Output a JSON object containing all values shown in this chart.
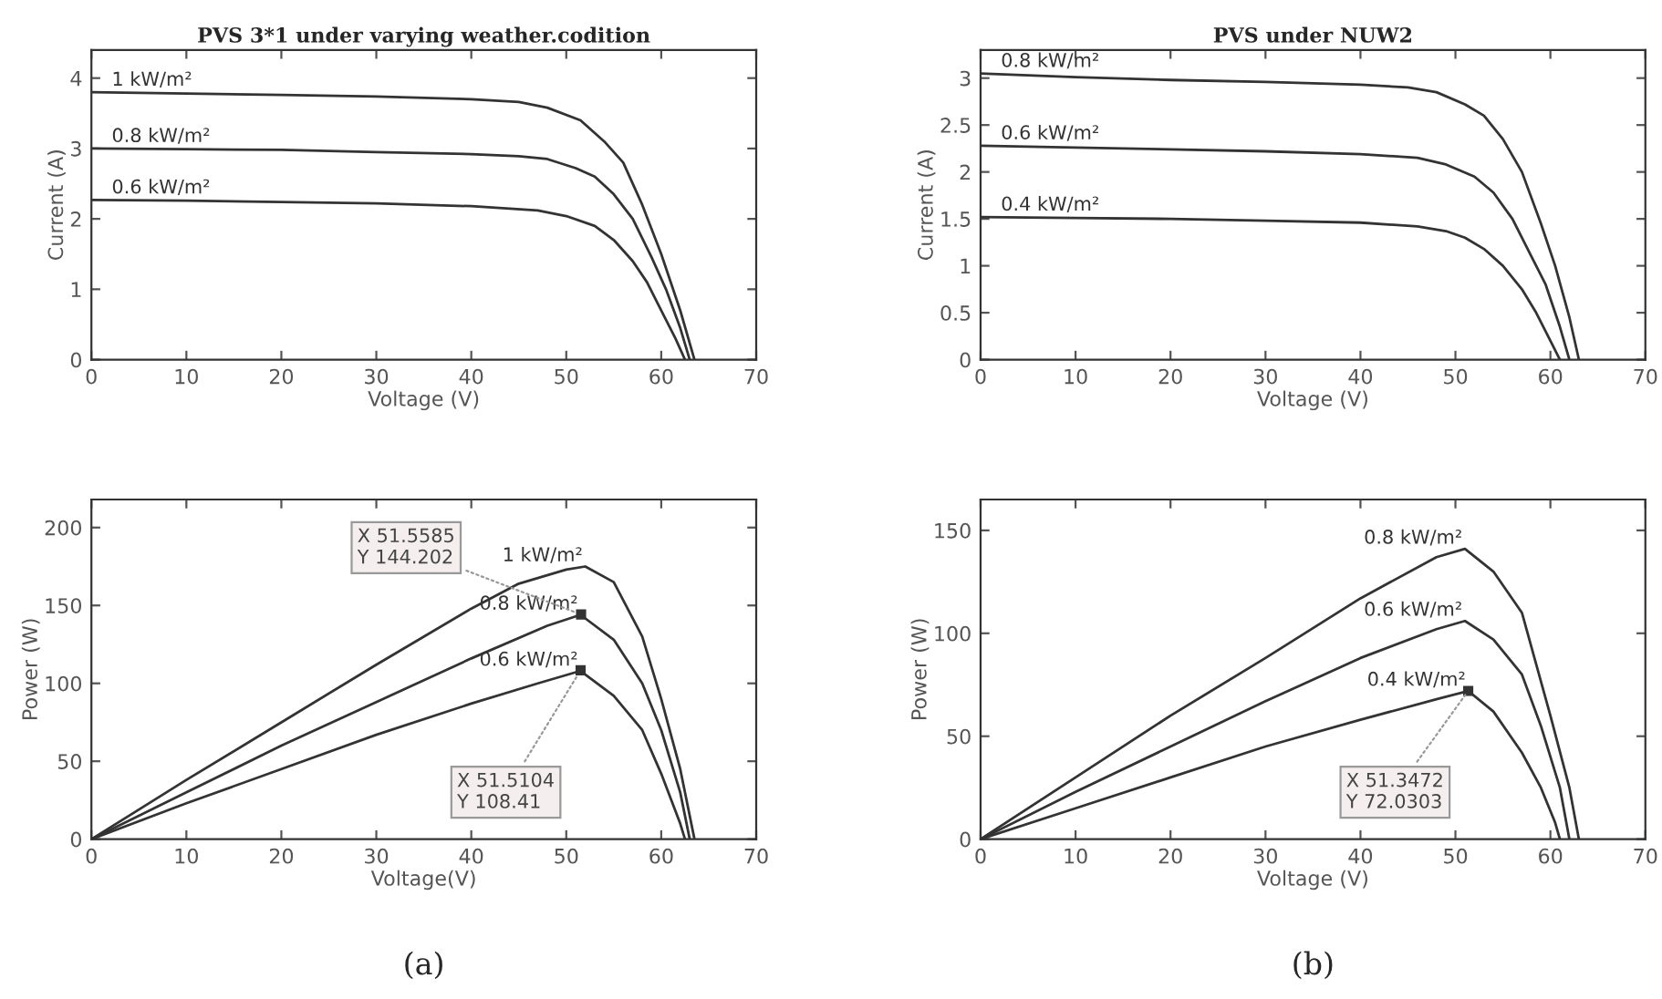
{
  "chart_data": [
    {
      "type": "line",
      "title": "PVS 3*1 under varying weather.codition",
      "xlabel": "Voltage (V)",
      "ylabel": "Current (A)",
      "xlim": [
        0,
        70
      ],
      "ylim": [
        0,
        4.4
      ],
      "xticks": [
        0,
        10,
        20,
        30,
        40,
        50,
        60,
        70
      ],
      "yticks": [
        0,
        1,
        2,
        3,
        4
      ],
      "grid": false,
      "legend": false,
      "marker": "none",
      "line_style": "solid",
      "series": [
        {
          "name": "1 kW/m²",
          "color": "#333333",
          "x": [
            0,
            10,
            20,
            30,
            40,
            45,
            48,
            51.5,
            54,
            56,
            58,
            60,
            62,
            63.5
          ],
          "values": [
            3.8,
            3.78,
            3.76,
            3.74,
            3.7,
            3.66,
            3.58,
            3.4,
            3.1,
            2.8,
            2.2,
            1.5,
            0.7,
            0
          ]
        },
        {
          "name": "0.8 kW/m²",
          "color": "#333333",
          "x": [
            0,
            10,
            20,
            30,
            40,
            45,
            48,
            51,
            53,
            55,
            57,
            59,
            60.5,
            62,
            63
          ],
          "values": [
            3.0,
            2.99,
            2.98,
            2.95,
            2.92,
            2.89,
            2.85,
            2.72,
            2.6,
            2.35,
            2.0,
            1.45,
            1.0,
            0.45,
            0
          ]
        },
        {
          "name": "0.6 kW/m²",
          "color": "#333333",
          "x": [
            0,
            10,
            20,
            30,
            40,
            47,
            50,
            53,
            55,
            57,
            58.5,
            60,
            61.5,
            62.5
          ],
          "values": [
            2.27,
            2.26,
            2.24,
            2.22,
            2.18,
            2.12,
            2.04,
            1.9,
            1.7,
            1.4,
            1.1,
            0.7,
            0.3,
            0
          ]
        }
      ]
    },
    {
      "type": "line",
      "title": "PVS under NUW2",
      "xlabel": "Voltage (V)",
      "ylabel": "Current (A)",
      "xlim": [
        0,
        70
      ],
      "ylim": [
        0,
        3.3
      ],
      "xticks": [
        0,
        10,
        20,
        30,
        40,
        50,
        60,
        70
      ],
      "yticks": [
        0,
        0.5,
        1,
        1.5,
        2,
        2.5,
        3
      ],
      "grid": false,
      "legend": false,
      "marker": "none",
      "line_style": "solid",
      "series": [
        {
          "name": "0.8 kW/m²",
          "color": "#333333",
          "x": [
            0,
            10,
            20,
            30,
            40,
            45,
            48,
            51,
            53,
            55,
            57,
            59,
            60.5,
            62,
            63
          ],
          "values": [
            3.05,
            3.01,
            2.98,
            2.96,
            2.93,
            2.9,
            2.85,
            2.72,
            2.6,
            2.35,
            2.0,
            1.45,
            1.0,
            0.45,
            0
          ]
        },
        {
          "name": "0.6 kW/m²",
          "color": "#333333",
          "x": [
            0,
            10,
            20,
            30,
            40,
            46,
            49,
            52,
            54,
            56,
            58,
            59.5,
            61,
            62
          ],
          "values": [
            2.28,
            2.26,
            2.24,
            2.22,
            2.19,
            2.15,
            2.08,
            1.95,
            1.78,
            1.5,
            1.1,
            0.8,
            0.35,
            0
          ]
        },
        {
          "name": "0.4 kW/m²",
          "color": "#333333",
          "x": [
            0,
            10,
            20,
            30,
            40,
            46,
            49,
            51,
            53,
            55,
            57,
            58.5,
            60,
            61
          ],
          "values": [
            1.52,
            1.51,
            1.5,
            1.48,
            1.46,
            1.42,
            1.37,
            1.3,
            1.18,
            1.0,
            0.75,
            0.5,
            0.2,
            0
          ]
        }
      ]
    },
    {
      "type": "line",
      "xlabel": "Voltage(V)",
      "ylabel": "Power (W)",
      "xlim": [
        0,
        70
      ],
      "ylim": [
        0,
        218
      ],
      "xticks": [
        0,
        10,
        20,
        30,
        40,
        50,
        60,
        70
      ],
      "yticks": [
        0,
        50,
        100,
        150,
        200
      ],
      "grid": false,
      "legend": false,
      "marker": "none",
      "line_style": "solid",
      "annotations": [
        {
          "text": "X 51.5585\nY 144.202",
          "x": 51.5585,
          "y": 144.202
        },
        {
          "text": "X 51.5104\nY 108.41",
          "x": 51.5104,
          "y": 108.41
        },
        "(a)"
      ],
      "series": [
        {
          "name": "1 kW/m²",
          "color": "#333333",
          "x": [
            0,
            10,
            20,
            30,
            40,
            45,
            50,
            52,
            55,
            58,
            60,
            62,
            63.5
          ],
          "values": [
            0,
            38,
            75,
            112,
            148,
            164,
            173,
            175,
            165,
            130,
            90,
            45,
            0
          ]
        },
        {
          "name": "0.8 kW/m²",
          "color": "#333333",
          "x": [
            0,
            10,
            20,
            30,
            40,
            48,
            51.5,
            55,
            58,
            60,
            62,
            63
          ],
          "values": [
            0,
            30,
            60,
            88,
            116,
            137,
            144,
            128,
            100,
            70,
            30,
            0
          ]
        },
        {
          "name": "0.6 kW/m²",
          "color": "#333333",
          "x": [
            0,
            10,
            20,
            30,
            40,
            47,
            51.5,
            55,
            58,
            60,
            62,
            62.5
          ],
          "values": [
            0,
            23,
            45,
            67,
            87,
            100,
            108,
            92,
            70,
            42,
            10,
            0
          ]
        }
      ]
    },
    {
      "type": "line",
      "xlabel": "Voltage (V)",
      "ylabel": "Power (W)",
      "xlim": [
        0,
        70
      ],
      "ylim": [
        0,
        165
      ],
      "xticks": [
        0,
        10,
        20,
        30,
        40,
        50,
        60,
        70
      ],
      "yticks": [
        0,
        50,
        100,
        150
      ],
      "grid": false,
      "legend": false,
      "marker": "none",
      "line_style": "solid",
      "annotations": [
        {
          "text": "X 51.3472\nY 72.0303",
          "x": 51.3472,
          "y": 72.0303
        },
        "(b)"
      ],
      "series": [
        {
          "name": "0.8 kW/m²",
          "color": "#333333",
          "x": [
            0,
            10,
            20,
            30,
            40,
            48,
            51,
            54,
            57,
            60,
            62,
            63
          ],
          "values": [
            0,
            30,
            60,
            88,
            117,
            137,
            141,
            130,
            110,
            60,
            25,
            0
          ]
        },
        {
          "name": "0.6 kW/m²",
          "color": "#333333",
          "x": [
            0,
            10,
            20,
            30,
            40,
            48,
            51,
            54,
            57,
            59,
            61,
            62
          ],
          "values": [
            0,
            23,
            45,
            67,
            88,
            102,
            106,
            97,
            80,
            55,
            25,
            0
          ]
        },
        {
          "name": "0.4 kW/m²",
          "color": "#333333",
          "x": [
            0,
            10,
            20,
            30,
            40,
            48,
            51.3472,
            54,
            57,
            59,
            60.5,
            61
          ],
          "values": [
            0,
            15,
            30,
            45,
            58,
            68,
            72,
            62,
            42,
            25,
            8,
            0
          ]
        }
      ]
    }
  ]
}
